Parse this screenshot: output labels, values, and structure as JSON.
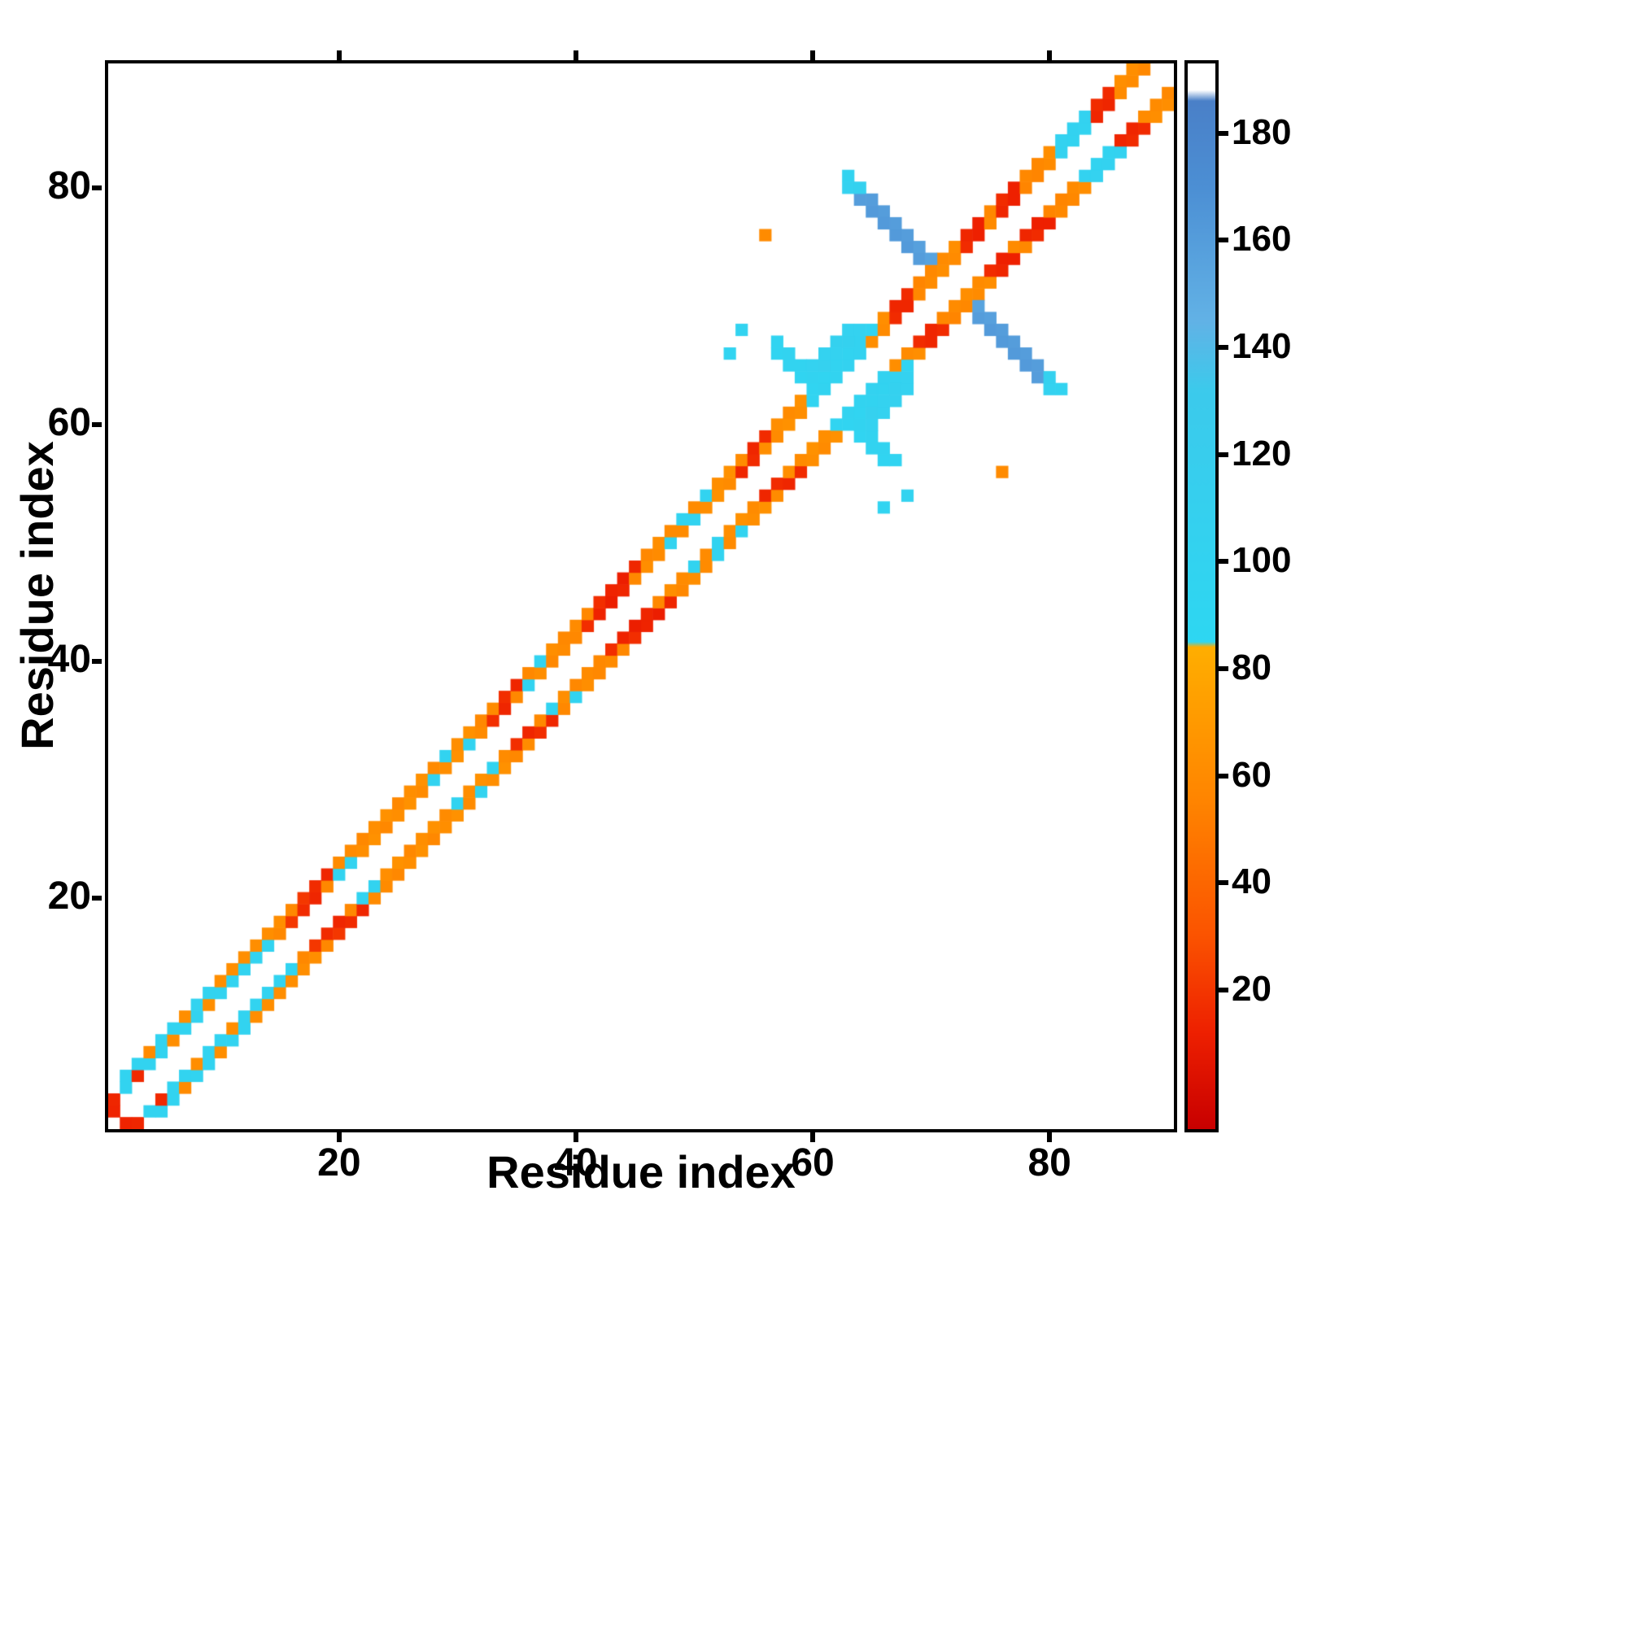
{
  "chart_data": {
    "type": "heatmap",
    "title": "",
    "xlabel": "Residue index",
    "ylabel": "Residue index",
    "x_range": [
      0.5,
      90.5
    ],
    "y_range": [
      0.5,
      90.5
    ],
    "x_ticks": [
      20,
      40,
      60,
      80
    ],
    "y_ticks": [
      20,
      40,
      60,
      80
    ],
    "grid": false,
    "symmetric": true,
    "background_value_color": "#ffffff",
    "colorbar": {
      "min": -6,
      "max": 193,
      "ticks": [
        20,
        40,
        60,
        80,
        100,
        120,
        140,
        160,
        180
      ],
      "position": "right"
    },
    "colormap_stops": [
      [
        -6,
        "#c80000"
      ],
      [
        12,
        "#ee2000"
      ],
      [
        30,
        "#fb5300"
      ],
      [
        55,
        "#ff8400"
      ],
      [
        84,
        "#ffae00"
      ],
      [
        85,
        "#2ed7f2"
      ],
      [
        132,
        "#3ccaec"
      ],
      [
        145,
        "#62b2e6"
      ],
      [
        170,
        "#4c8fd4"
      ],
      [
        186,
        "#4a80c8"
      ],
      [
        188,
        "#ffffff"
      ],
      [
        193,
        "#ffffff"
      ]
    ],
    "cells": [
      [
        1,
        2,
        13
      ],
      [
        1,
        3,
        14
      ],
      [
        2,
        4,
        100
      ],
      [
        2,
        5,
        100
      ],
      [
        3,
        5,
        15
      ],
      [
        3,
        6,
        100
      ],
      [
        4,
        6,
        100
      ],
      [
        4,
        7,
        60
      ],
      [
        5,
        7,
        100
      ],
      [
        5,
        8,
        100
      ],
      [
        6,
        8,
        62
      ],
      [
        6,
        9,
        100
      ],
      [
        7,
        9,
        100
      ],
      [
        7,
        10,
        62
      ],
      [
        8,
        10,
        100
      ],
      [
        8,
        11,
        100
      ],
      [
        9,
        11,
        62
      ],
      [
        9,
        12,
        100
      ],
      [
        10,
        12,
        100
      ],
      [
        10,
        13,
        62
      ],
      [
        11,
        13,
        100
      ],
      [
        11,
        14,
        62
      ],
      [
        12,
        14,
        100
      ],
      [
        12,
        15,
        62
      ],
      [
        13,
        15,
        100
      ],
      [
        13,
        16,
        62
      ],
      [
        14,
        16,
        100
      ],
      [
        14,
        17,
        62
      ],
      [
        15,
        17,
        58
      ],
      [
        15,
        18,
        62
      ],
      [
        16,
        18,
        20
      ],
      [
        16,
        19,
        58
      ],
      [
        17,
        19,
        16
      ],
      [
        17,
        20,
        20
      ],
      [
        18,
        20,
        14
      ],
      [
        18,
        21,
        16
      ],
      [
        19,
        21,
        58
      ],
      [
        19,
        22,
        14
      ],
      [
        20,
        22,
        98
      ],
      [
        20,
        23,
        60
      ],
      [
        21,
        23,
        98
      ],
      [
        21,
        24,
        60
      ],
      [
        22,
        24,
        62
      ],
      [
        22,
        25,
        58
      ],
      [
        23,
        25,
        64
      ],
      [
        23,
        26,
        62
      ],
      [
        24,
        26,
        58
      ],
      [
        24,
        27,
        64
      ],
      [
        25,
        27,
        62
      ],
      [
        25,
        28,
        58
      ],
      [
        26,
        28,
        64
      ],
      [
        26,
        29,
        62
      ],
      [
        27,
        29,
        60
      ],
      [
        27,
        30,
        64
      ],
      [
        28,
        30,
        98
      ],
      [
        28,
        31,
        60
      ],
      [
        29,
        31,
        62
      ],
      [
        29,
        32,
        98
      ],
      [
        30,
        32,
        64
      ],
      [
        30,
        33,
        62
      ],
      [
        31,
        33,
        98
      ],
      [
        31,
        34,
        64
      ],
      [
        32,
        34,
        60
      ],
      [
        32,
        35,
        58
      ],
      [
        33,
        35,
        17
      ],
      [
        33,
        36,
        60
      ],
      [
        34,
        36,
        14
      ],
      [
        34,
        37,
        17
      ],
      [
        35,
        37,
        58
      ],
      [
        35,
        38,
        14
      ],
      [
        36,
        38,
        98
      ],
      [
        36,
        39,
        58
      ],
      [
        37,
        39,
        62
      ],
      [
        37,
        40,
        98
      ],
      [
        38,
        40,
        58
      ],
      [
        38,
        41,
        62
      ],
      [
        39,
        41,
        60
      ],
      [
        39,
        42,
        58
      ],
      [
        40,
        42,
        58
      ],
      [
        40,
        43,
        60
      ],
      [
        41,
        43,
        17
      ],
      [
        41,
        44,
        58
      ],
      [
        42,
        44,
        13
      ],
      [
        42,
        45,
        17
      ],
      [
        43,
        45,
        11
      ],
      [
        43,
        46,
        13
      ],
      [
        44,
        46,
        14
      ],
      [
        44,
        47,
        11
      ],
      [
        45,
        47,
        58
      ],
      [
        45,
        48,
        14
      ],
      [
        46,
        48,
        62
      ],
      [
        46,
        49,
        58
      ],
      [
        47,
        49,
        60
      ],
      [
        47,
        50,
        62
      ],
      [
        48,
        50,
        98
      ],
      [
        48,
        51,
        60
      ],
      [
        49,
        51,
        60
      ],
      [
        49,
        52,
        98
      ],
      [
        50,
        52,
        98
      ],
      [
        50,
        53,
        60
      ],
      [
        51,
        53,
        62
      ],
      [
        51,
        54,
        98
      ],
      [
        52,
        54,
        64
      ],
      [
        52,
        55,
        62
      ],
      [
        53,
        55,
        60
      ],
      [
        53,
        56,
        64
      ],
      [
        54,
        56,
        14
      ],
      [
        54,
        57,
        60
      ],
      [
        55,
        57,
        16
      ],
      [
        55,
        58,
        14
      ],
      [
        56,
        58,
        62
      ],
      [
        56,
        59,
        16
      ],
      [
        57,
        59,
        60
      ],
      [
        57,
        60,
        62
      ],
      [
        58,
        60,
        64
      ],
      [
        58,
        61,
        60
      ],
      [
        59,
        61,
        62
      ],
      [
        59,
        62,
        64
      ],
      [
        60,
        62,
        96
      ],
      [
        60,
        63,
        96
      ],
      [
        61,
        63,
        98
      ],
      [
        61,
        64,
        96
      ],
      [
        62,
        64,
        100
      ],
      [
        62,
        65,
        100
      ],
      [
        63,
        65,
        102
      ],
      [
        63,
        66,
        100
      ],
      [
        64,
        66,
        102
      ],
      [
        64,
        67,
        102
      ],
      [
        65,
        67,
        62
      ],
      [
        65,
        68,
        96
      ],
      [
        66,
        68,
        60
      ],
      [
        66,
        69,
        62
      ],
      [
        67,
        69,
        16
      ],
      [
        67,
        70,
        14
      ],
      [
        68,
        70,
        14
      ],
      [
        68,
        71,
        16
      ],
      [
        69,
        71,
        58
      ],
      [
        69,
        72,
        56
      ],
      [
        70,
        72,
        60
      ],
      [
        70,
        73,
        58
      ],
      [
        71,
        73,
        62
      ],
      [
        71,
        74,
        60
      ],
      [
        72,
        74,
        60
      ],
      [
        72,
        75,
        62
      ],
      [
        73,
        75,
        16
      ],
      [
        73,
        76,
        14
      ],
      [
        74,
        76,
        12
      ],
      [
        74,
        77,
        12
      ],
      [
        75,
        77,
        60
      ],
      [
        75,
        78,
        58
      ],
      [
        76,
        78,
        14
      ],
      [
        76,
        79,
        16
      ],
      [
        77,
        79,
        12
      ],
      [
        77,
        80,
        12
      ],
      [
        78,
        80,
        56
      ],
      [
        78,
        81,
        58
      ],
      [
        79,
        81,
        56
      ],
      [
        79,
        82,
        58
      ],
      [
        80,
        82,
        60
      ],
      [
        80,
        83,
        62
      ],
      [
        81,
        83,
        102
      ],
      [
        81,
        84,
        104
      ],
      [
        82,
        84,
        100
      ],
      [
        82,
        85,
        102
      ],
      [
        83,
        85,
        100
      ],
      [
        83,
        86,
        102
      ],
      [
        84,
        86,
        14
      ],
      [
        84,
        87,
        16
      ],
      [
        85,
        87,
        14
      ],
      [
        85,
        88,
        16
      ],
      [
        86,
        88,
        60
      ],
      [
        86,
        89,
        62
      ],
      [
        87,
        89,
        60
      ],
      [
        87,
        90,
        62
      ],
      [
        88,
        90,
        58
      ],
      [
        57,
        66,
        96
      ],
      [
        57,
        67,
        96
      ],
      [
        58,
        65,
        98
      ],
      [
        58,
        66,
        100
      ],
      [
        59,
        64,
        96
      ],
      [
        59,
        65,
        100
      ],
      [
        60,
        64,
        100
      ],
      [
        60,
        65,
        104
      ],
      [
        61,
        65,
        108
      ],
      [
        61,
        66,
        104
      ],
      [
        62,
        66,
        104
      ],
      [
        62,
        67,
        106
      ],
      [
        63,
        67,
        106
      ],
      [
        63,
        68,
        104
      ],
      [
        64,
        68,
        104
      ],
      [
        54,
        68,
        98
      ],
      [
        53,
        66,
        96
      ],
      [
        56,
        76,
        60
      ],
      [
        63,
        80,
        104
      ],
      [
        63,
        81,
        100
      ],
      [
        64,
        79,
        160
      ],
      [
        64,
        80,
        106
      ],
      [
        65,
        78,
        162
      ],
      [
        65,
        79,
        160
      ],
      [
        66,
        77,
        162
      ],
      [
        66,
        78,
        160
      ],
      [
        67,
        76,
        162
      ],
      [
        67,
        77,
        160
      ],
      [
        68,
        75,
        162
      ],
      [
        68,
        76,
        160
      ],
      [
        69,
        74,
        160
      ],
      [
        69,
        75,
        158
      ],
      [
        70,
        74,
        156
      ]
    ]
  }
}
